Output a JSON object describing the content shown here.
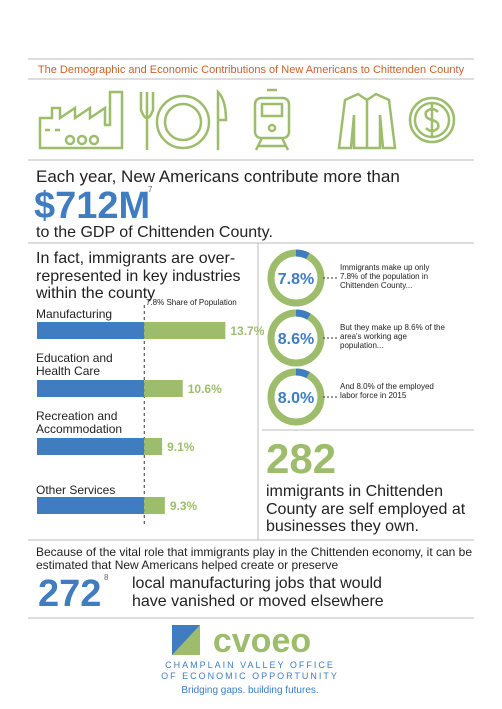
{
  "header": {
    "title": "The Demographic and Economic Contributions of New Americans to Chittenden County"
  },
  "gdp": {
    "lead": "Each year, New Americans contribute more than",
    "amount": "$712M",
    "note": "7",
    "tail": "to the GDP of Chittenden County."
  },
  "industries": {
    "type": "bar",
    "title": "In fact, immigrants are over-represented in key industries within the county",
    "reference": {
      "value": 7.8,
      "label": "7.8% Share of Population"
    },
    "categories": [
      "Manufacturing",
      "Education and Health Care",
      "Recreation and Accommodation",
      "Other Services"
    ],
    "values": [
      13.7,
      10.6,
      9.1,
      9.3
    ],
    "value_labels": [
      "13.7%",
      "10.6%",
      "9.1%",
      "9.3%"
    ],
    "base_color": "#3f7cc0",
    "over_color": "#9dbd6c"
  },
  "shares": {
    "type": "donut",
    "ring_color": "#9dbd6c",
    "arc_color": "#3f7cc0",
    "items": [
      {
        "value": 7.8,
        "label": "7.8%",
        "text": "Immigrants make up only 7.8% of the population in Chittenden County..."
      },
      {
        "value": 8.6,
        "label": "8.6%",
        "text": "But they make up 8.6% of the area's working age population..."
      },
      {
        "value": 8.0,
        "label": "8.0%",
        "text": "And 8.0% of the employed labor force in 2015"
      }
    ]
  },
  "self_employed": {
    "number": 282,
    "text": "immigrants in Chittenden County are self employed at businesses they own."
  },
  "jobs": {
    "intro": "Because of the vital role that immigrants play in the Chittenden economy, it can be estimated that New Americans helped create or preserve",
    "number": 272,
    "note": "8",
    "text": "local manufacturing jobs that would have vanished or moved elsewhere"
  },
  "footer": {
    "logo": "cvoeo",
    "line1": "CHAMPLAIN VALLEY OFFICE",
    "line2": "OF ECONOMIC OPPORTUNITY",
    "tagline": "Bridging gaps. building futures."
  }
}
